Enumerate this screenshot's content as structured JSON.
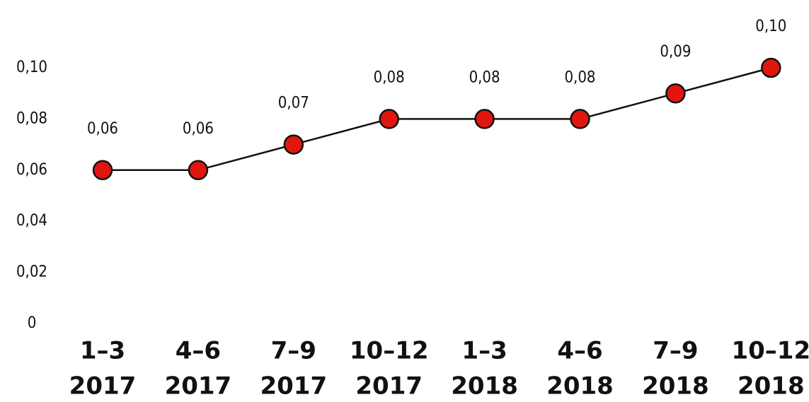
{
  "chart_data": {
    "type": "line",
    "categories": [
      [
        "1–3",
        "2017"
      ],
      [
        "4–6",
        "2017"
      ],
      [
        "7–9",
        "2017"
      ],
      [
        "10–12",
        "2017"
      ],
      [
        "1–3",
        "2018"
      ],
      [
        "4–6",
        "2018"
      ],
      [
        "7–9",
        "2018"
      ],
      [
        "10–12",
        "2018"
      ]
    ],
    "series": [
      {
        "color": "#e0160f",
        "values": [
          0.06,
          0.06,
          0.07,
          0.08,
          0.08,
          0.08,
          0.09,
          0.1
        ],
        "value_labels": [
          "0,06",
          "0,06",
          "0,07",
          "0,08",
          "0,08",
          "0,08",
          "0,09",
          "0,10"
        ]
      }
    ],
    "ylim": [
      0,
      0.1
    ],
    "yticks": [
      0,
      {
        "value": 0.02,
        "label": "0,02"
      },
      {
        "value": 0.04,
        "label": "0,04"
      },
      {
        "value": 0.06,
        "label": "0,06"
      },
      {
        "value": 0.08,
        "label": "0,08"
      },
      {
        "value": 0.1,
        "label": "0,10"
      }
    ],
    "grid": false
  }
}
